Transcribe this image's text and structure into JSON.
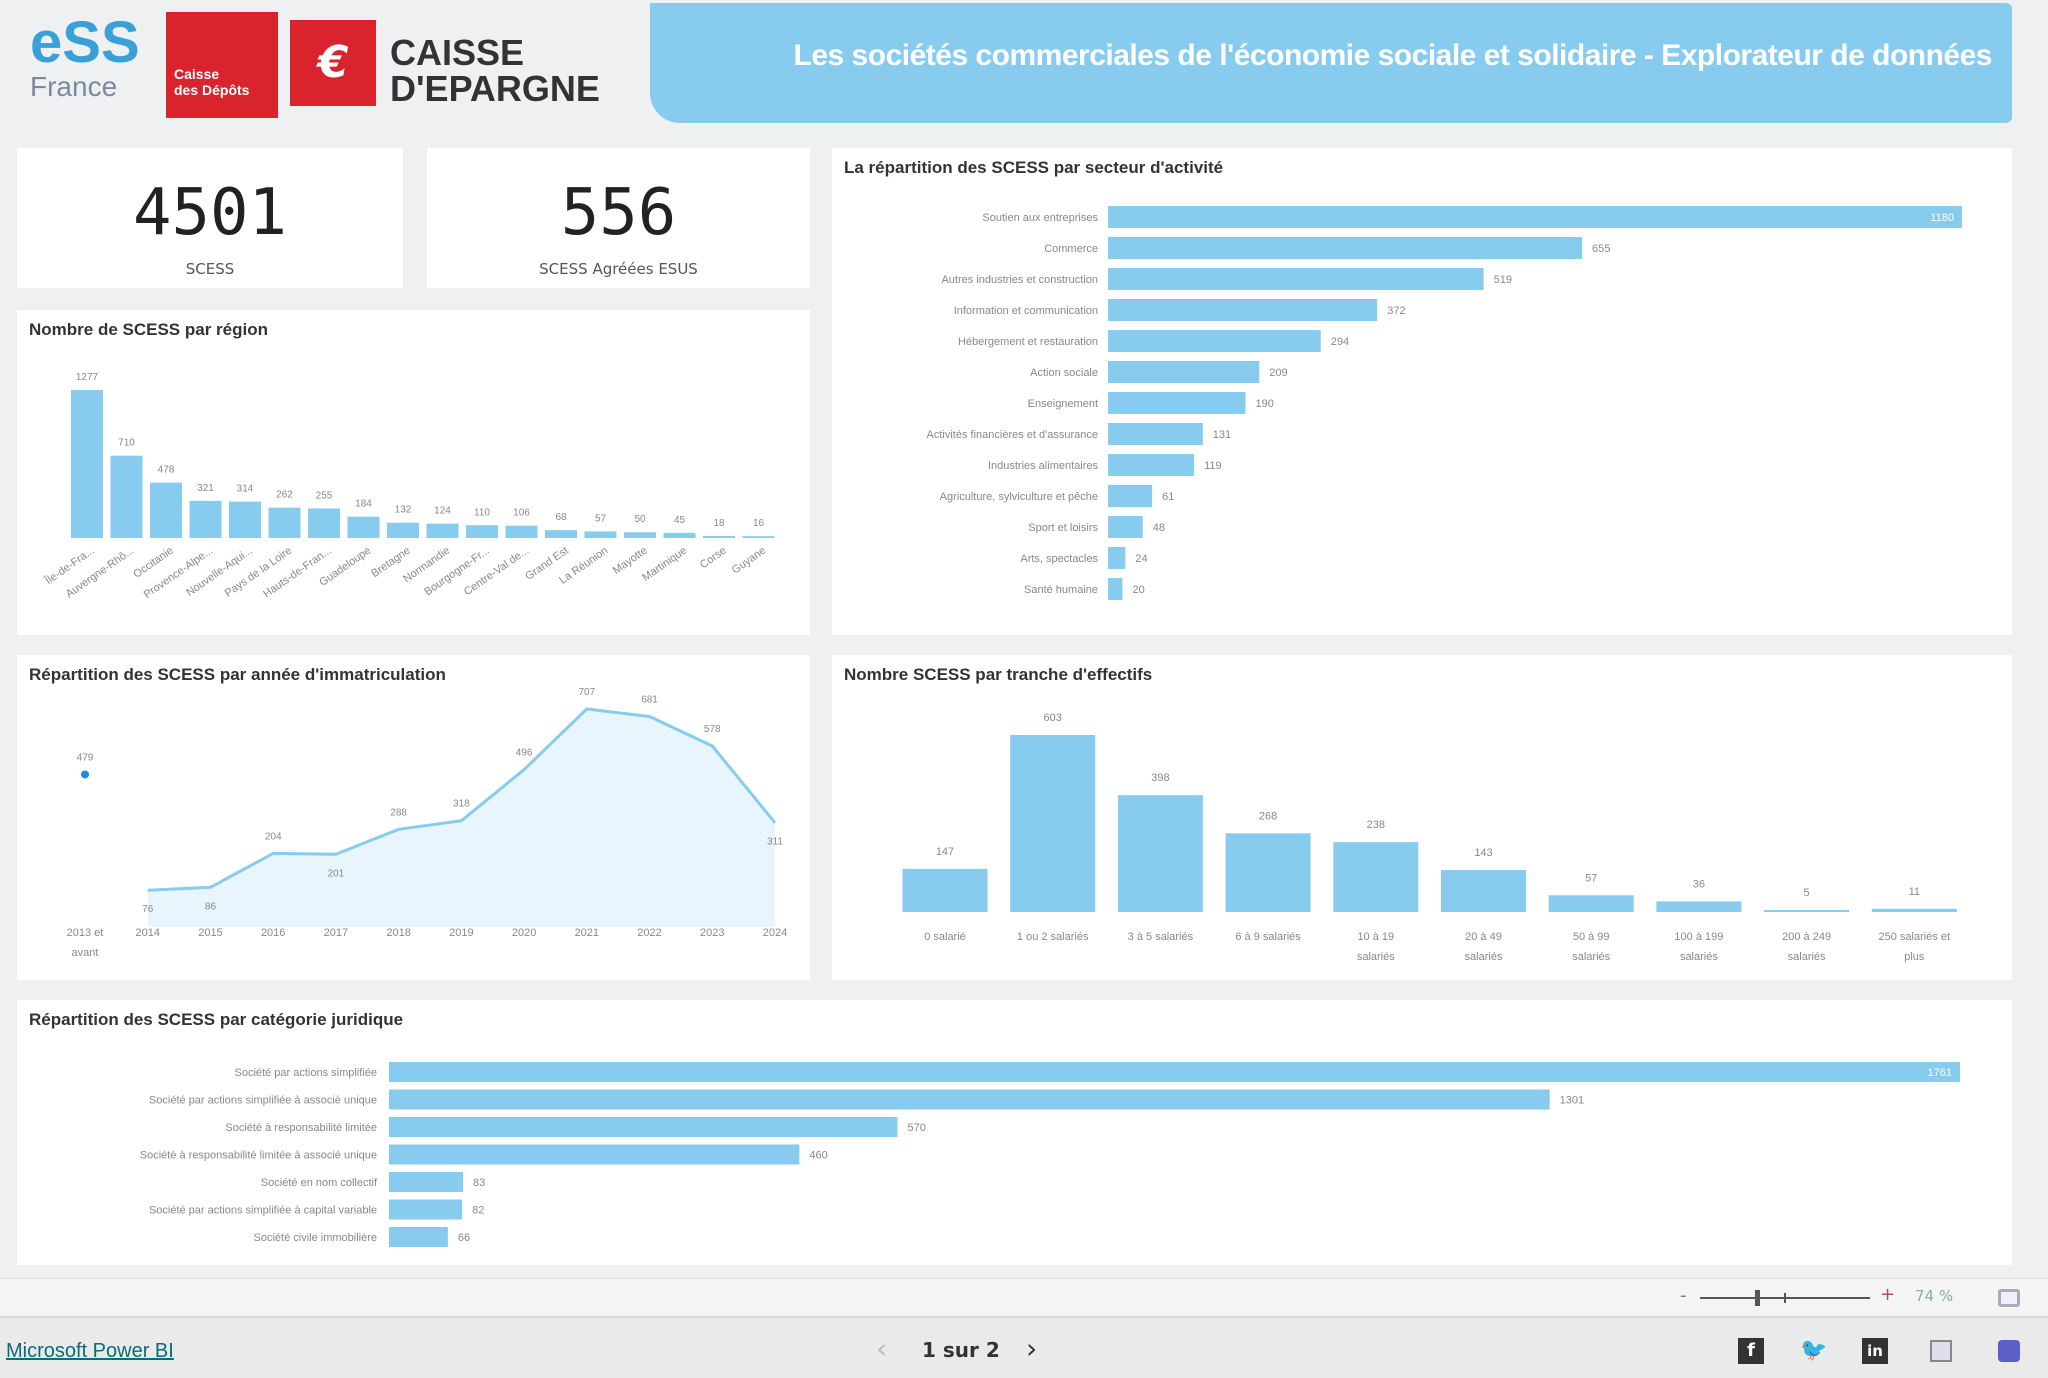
{
  "header": {
    "logos": {
      "ess_main": "eSS",
      "ess_sub": "France",
      "cdc_line1": "Caisse",
      "cdc_line2": "des Dépôts",
      "ce_line1": "CAISSE",
      "ce_line2": "D'EPARGNE"
    },
    "title": "Les sociétés commerciales de l'économie sociale et solidaire - Explorateur de données"
  },
  "kpis": [
    {
      "value": "4501",
      "label": "SCESS"
    },
    {
      "value": "556",
      "label": "SCESS Agréées ESUS"
    }
  ],
  "colors": {
    "bar": "#87ccef",
    "accent_dot": "#1e88e5",
    "banner": "#87ccef"
  },
  "chart_data": [
    {
      "id": "region",
      "type": "bar",
      "title": "Nombre de SCESS par région",
      "categories": [
        "Île-de-Fra...",
        "Auvergne-Rhô...",
        "Occitanie",
        "Provence-Alpe...",
        "Nouvelle-Aqui...",
        "Pays de la Loire",
        "Hauts-de-Fran...",
        "Guadeloupe",
        "Bretagne",
        "Normandie",
        "Bourgogne-Fr...",
        "Centre-Val de...",
        "Grand Est",
        "La Réunion",
        "Mayotte",
        "Martinique",
        "Corse",
        "Guyane"
      ],
      "values": [
        1277,
        710,
        478,
        321,
        314,
        262,
        255,
        184,
        132,
        124,
        110,
        106,
        68,
        57,
        50,
        45,
        18,
        16
      ],
      "labels": [
        "1277",
        "710",
        "478",
        "321",
        "314",
        "262",
        "255",
        "184",
        "132",
        "124",
        "110",
        "106",
        "68",
        "57",
        "50",
        "45",
        "18",
        "16"
      ]
    },
    {
      "id": "secteur",
      "type": "bar",
      "orientation": "horizontal",
      "title": "La répartition des SCESS par secteur d'activité",
      "categories": [
        "Soutien aux entreprises",
        "Commerce",
        "Autres industries et construction",
        "Information et communication",
        "Hébergement et restauration",
        "Action sociale",
        "Enseignement",
        "Activités financières et d'assurance",
        "Industries alimentaires",
        "Agriculture, sylviculture et pêche",
        "Sport et loisirs",
        "Arts, spectacles",
        "Santé humaine"
      ],
      "values": [
        1180,
        655,
        519,
        372,
        294,
        209,
        190,
        131,
        119,
        61,
        48,
        24,
        20
      ],
      "labels": [
        "1180",
        "655",
        "519",
        "372",
        "294",
        "209",
        "190",
        "131",
        "119",
        "61",
        "48",
        "24",
        "20"
      ]
    },
    {
      "id": "annee",
      "type": "area",
      "title": "Répartition des SCESS par année d'immatriculation",
      "categories": [
        "2013 et|avant",
        "2014",
        "2015",
        "2016",
        "2017",
        "2018",
        "2019",
        "2020",
        "2021",
        "2022",
        "2023",
        "2024"
      ],
      "values": [
        479,
        76,
        86,
        204,
        201,
        288,
        318,
        496,
        707,
        681,
        578,
        311
      ],
      "labels": [
        "479",
        "76",
        "86",
        "204",
        "201",
        "288",
        "318",
        "496",
        "707",
        "681",
        "578",
        "311"
      ]
    },
    {
      "id": "effectif",
      "type": "bar",
      "title": "Nombre SCESS par tranche d'effectifs",
      "categories": [
        "0 salarié",
        "1 ou 2 salariés",
        "3 à 5 salariés",
        "6 à 9 salariés",
        "10 à 19|salariés",
        "20 à 49|salariés",
        "50 à 99|salariés",
        "100 à 199|salariés",
        "200 à 249|salariés",
        "250 salariés et|plus"
      ],
      "values": [
        147,
        603,
        398,
        268,
        238,
        143,
        57,
        36,
        5,
        11
      ],
      "labels": [
        "147",
        "603",
        "398",
        "268",
        "238",
        "143",
        "57",
        "36",
        "5",
        "11"
      ]
    },
    {
      "id": "juridique",
      "type": "bar",
      "orientation": "horizontal",
      "title": "Répartition des SCESS par catégorie juridique",
      "categories": [
        "Société par actions simplifiée",
        "Société par actions simplifiée à associé unique",
        "Société à responsabilité limitée",
        "Société à responsabilité limitée à associé unique",
        "Société en nom collectif",
        "Société par actions simplifiée à capital variable",
        "Société civile immobilière"
      ],
      "values": [
        1761,
        1301,
        570,
        460,
        83,
        82,
        66
      ],
      "labels": [
        "1761",
        "1301",
        "570",
        "460",
        "83",
        "82",
        "66"
      ]
    }
  ],
  "zoom": {
    "minus": "-",
    "plus": "+",
    "level": "74 %"
  },
  "footer": {
    "brand_link": "Microsoft Power BI",
    "page_indicator": "1 sur 2",
    "prev": "‹",
    "next": "›",
    "facebook": "f",
    "linkedin": "in"
  }
}
